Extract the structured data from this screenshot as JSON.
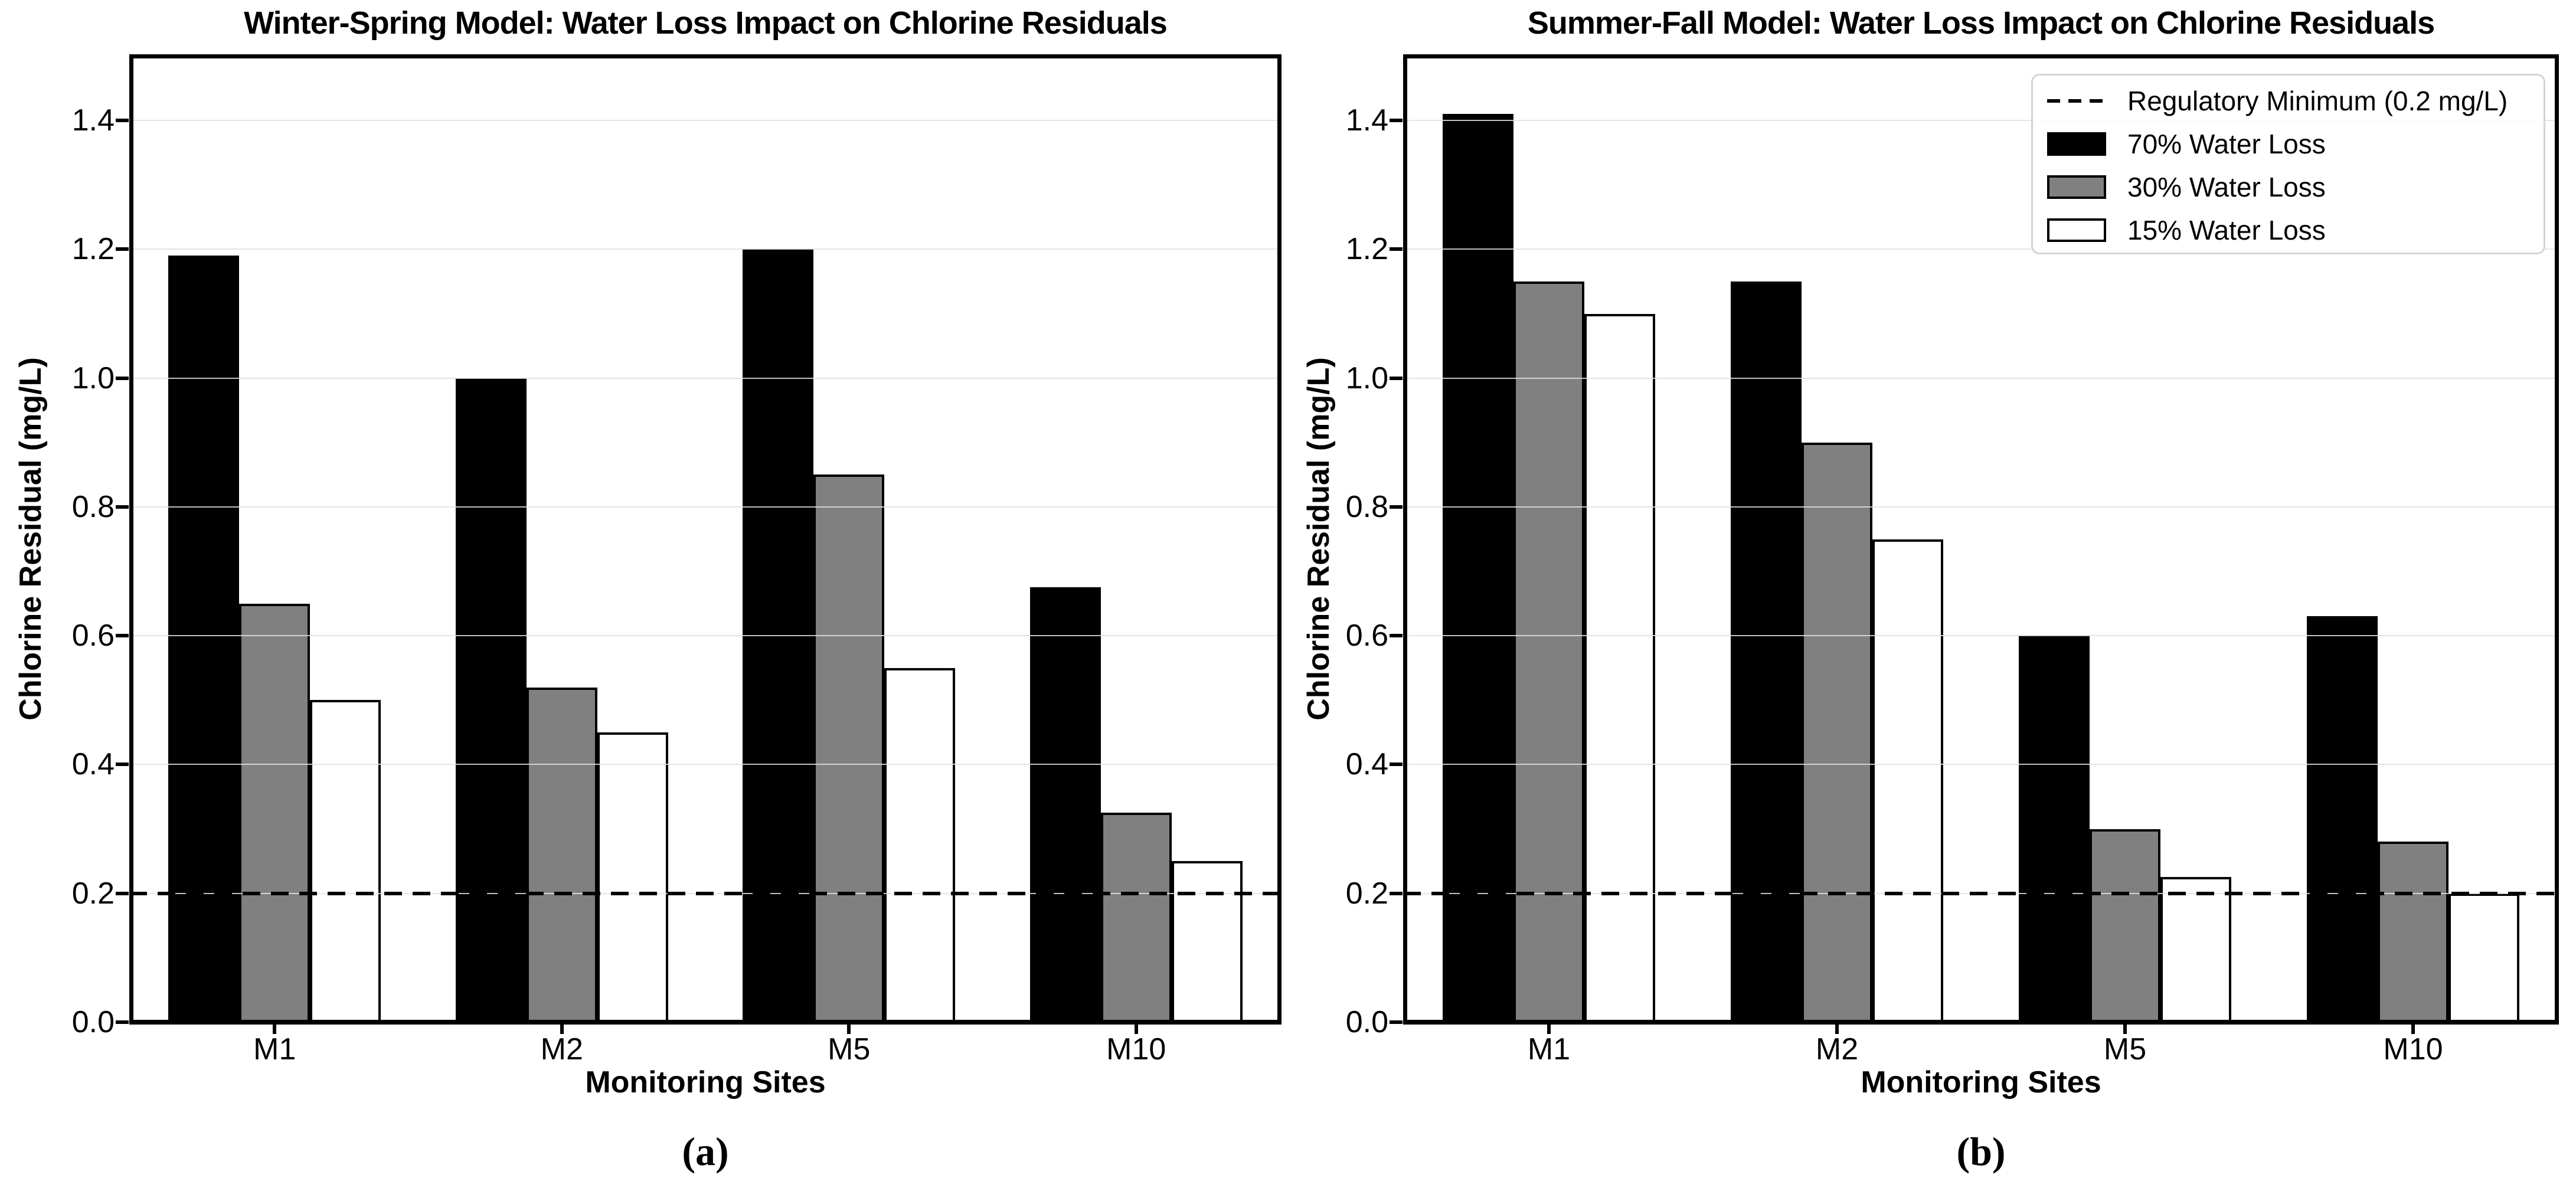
{
  "figure": {
    "background": "#ffffff",
    "kind": "two-panel grouped bar chart"
  },
  "colors": {
    "black_series": "#000000",
    "gray_series": "#808080",
    "white_series": "#ffffff",
    "bar_edge": "#000000",
    "grid": "#e0e0e0",
    "reference_line": "#000000",
    "legend_border": "#d4d4d4"
  },
  "legend": {
    "position": "upper right of panel (b)",
    "entries": [
      {
        "key": "dashed-line",
        "label": "Regulatory Minimum (0.2 mg/L)"
      },
      {
        "key": "black_series",
        "label": "70% Water Loss"
      },
      {
        "key": "gray_series",
        "label": "30% Water Loss"
      },
      {
        "key": "white_series",
        "label": "15% Water Loss"
      }
    ]
  },
  "chart_data": [
    {
      "type": "bar",
      "panel": "a",
      "caption": "(a)",
      "title": "Winter-Spring Model: Water Loss Impact on Chlorine Residuals",
      "xlabel": "Monitoring Sites",
      "ylabel": "Chlorine Residual (mg/L)",
      "categories": [
        "M1",
        "M2",
        "M5",
        "M10"
      ],
      "series": [
        {
          "name": "70% Water Loss",
          "color": "black_series",
          "values": [
            1.19,
            1.0,
            1.2,
            0.675
          ]
        },
        {
          "name": "30% Water Loss",
          "color": "gray_series",
          "values": [
            0.65,
            0.52,
            0.85,
            0.325
          ]
        },
        {
          "name": "15% Water Loss",
          "color": "white_series",
          "values": [
            0.5,
            0.45,
            0.55,
            0.25
          ]
        }
      ],
      "reference_line": {
        "value": 0.2,
        "style": "dashed",
        "label": "Regulatory Minimum (0.2 mg/L)"
      },
      "yticks": [
        0.0,
        0.2,
        0.4,
        0.6,
        0.8,
        1.0,
        1.2,
        1.4
      ],
      "ylim": [
        0,
        1.5
      ],
      "grid": true,
      "legend_visible": false
    },
    {
      "type": "bar",
      "panel": "b",
      "caption": "(b)",
      "title": "Summer-Fall Model: Water Loss Impact on Chlorine Residuals",
      "xlabel": "Monitoring Sites",
      "ylabel": "Chlorine Residual (mg/L)",
      "categories": [
        "M1",
        "M2",
        "M5",
        "M10"
      ],
      "series": [
        {
          "name": "70% Water Loss",
          "color": "black_series",
          "values": [
            1.41,
            1.15,
            0.6,
            0.63
          ]
        },
        {
          "name": "30% Water Loss",
          "color": "gray_series",
          "values": [
            1.15,
            0.9,
            0.3,
            0.28
          ]
        },
        {
          "name": "15% Water Loss",
          "color": "white_series",
          "values": [
            1.1,
            0.75,
            0.225,
            0.2
          ]
        }
      ],
      "reference_line": {
        "value": 0.2,
        "style": "dashed",
        "label": "Regulatory Minimum (0.2 mg/L)"
      },
      "yticks": [
        0.0,
        0.2,
        0.4,
        0.6,
        0.8,
        1.0,
        1.2,
        1.4
      ],
      "ylim": [
        0,
        1.5
      ],
      "grid": true,
      "legend_visible": true
    }
  ]
}
